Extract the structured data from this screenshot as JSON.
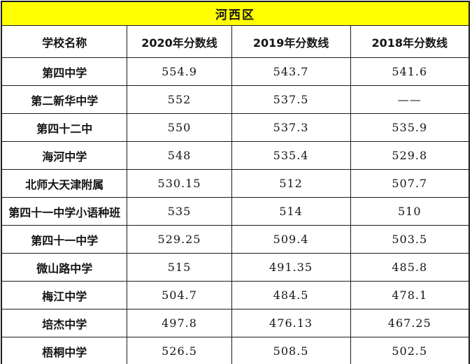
{
  "chart_data": {
    "type": "table",
    "title": "河西区",
    "columns": [
      "学校名称",
      "2020年分数线",
      "2019年分数线",
      "2018年分数线"
    ],
    "rows": [
      [
        "第四中学",
        "554.9",
        "543.7",
        "541.6"
      ],
      [
        "第二新华中学",
        "552",
        "537.5",
        "——"
      ],
      [
        "第四十二中",
        "550",
        "537.3",
        "535.9"
      ],
      [
        "海河中学",
        "548",
        "535.4",
        "529.8"
      ],
      [
        "北师大天津附属",
        "530.15",
        "512",
        "507.7"
      ],
      [
        "第四十一中学小语种班",
        "535",
        "514",
        "510"
      ],
      [
        "第四十一中学",
        "529.25",
        "509.4",
        "503.5"
      ],
      [
        "微山路中学",
        "515",
        "491.35",
        "485.8"
      ],
      [
        "梅江中学",
        "504.7",
        "484.5",
        "478.1"
      ],
      [
        "培杰中学",
        "497.8",
        "476.13",
        "467.25"
      ],
      [
        "梧桐中学",
        "526.5",
        "508.5",
        "502.5"
      ]
    ],
    "layout": {
      "legend": "none",
      "grid": "on",
      "column_widths_pct": [
        26.9,
        22.3,
        25.4,
        25.4
      ]
    }
  },
  "colors": {
    "title_bg": "#ffff00",
    "border": "#1c1c1c",
    "text": "#141414",
    "table_bg": "#ffffff"
  }
}
